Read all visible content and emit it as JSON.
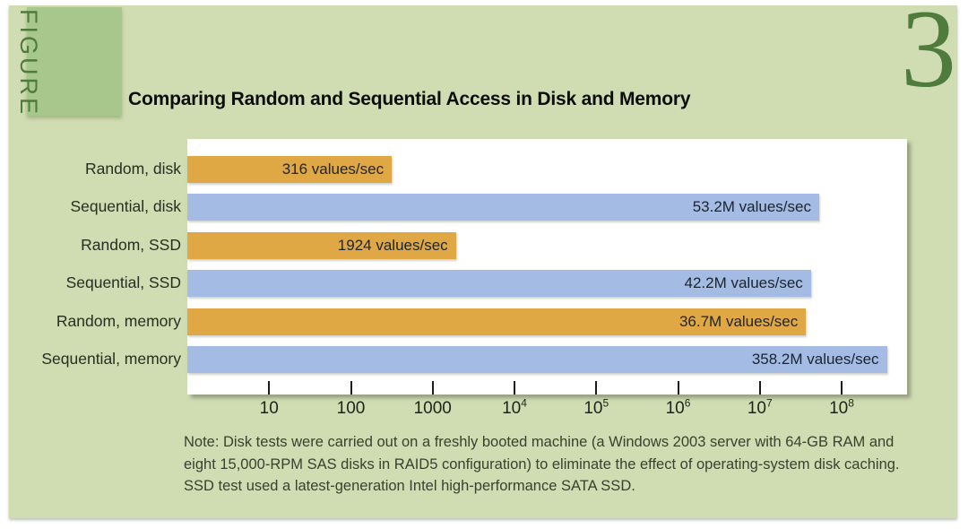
{
  "figure": {
    "label": "FIGURE",
    "number": "3"
  },
  "title": "Comparing Random and Sequential Access in Disk and Memory",
  "chart_data": {
    "type": "bar",
    "orientation": "horizontal",
    "x_scale": "log10",
    "xlim": [
      1,
      630957344
    ],
    "grid": false,
    "legend": false,
    "title": "Comparing Random and Sequential Access in Disk and Memory",
    "xlabel": "",
    "ylabel": "",
    "categories": [
      "Random, disk",
      "Sequential, disk",
      "Random, SSD",
      "Sequential, SSD",
      "Random, memory",
      "Sequential, memory"
    ],
    "values": [
      316,
      53200000,
      1924,
      42200000,
      36700000,
      358200000
    ],
    "bar_labels": [
      "316 values/sec",
      "53.2M values/sec",
      "1924 values/sec",
      "42.2M values/sec",
      "36.7M values/sec",
      "358.2M values/sec"
    ],
    "bar_types": [
      "random",
      "sequential",
      "random",
      "sequential",
      "random",
      "sequential"
    ],
    "colors": {
      "random": "#dfa845",
      "sequential": "#a4bbe3"
    },
    "value_label_position": "inside-right",
    "x_ticks": [
      {
        "exp": 1,
        "base": "10",
        "sup": ""
      },
      {
        "exp": 2,
        "base": "100",
        "sup": ""
      },
      {
        "exp": 3,
        "base": "1000",
        "sup": ""
      },
      {
        "exp": 4,
        "base": "10",
        "sup": "4"
      },
      {
        "exp": 5,
        "base": "10",
        "sup": "5"
      },
      {
        "exp": 6,
        "base": "10",
        "sup": "6"
      },
      {
        "exp": 7,
        "base": "10",
        "sup": "7"
      },
      {
        "exp": 8,
        "base": "10",
        "sup": "8"
      }
    ]
  },
  "note": {
    "lines": [
      "Note: Disk tests were carried out on a freshly booted machine (a Windows 2003 server with 64-GB RAM and",
      "eight 15,000-RPM SAS disks in RAID5 configuration) to eliminate the effect of operating-system disk caching.",
      "SSD test used a latest-generation Intel high-performance SATA SSD."
    ]
  },
  "colors": {
    "page_bg": "#ffffff",
    "panel_green": "#d0dcb2",
    "figure_box_green": "#a7c78c",
    "figure_text_green": "#4f7b3c",
    "bar_random": "#dfa845",
    "bar_sequential": "#a4bbe3",
    "title_text": "#0d0d0d",
    "note_text": "#39412f"
  }
}
